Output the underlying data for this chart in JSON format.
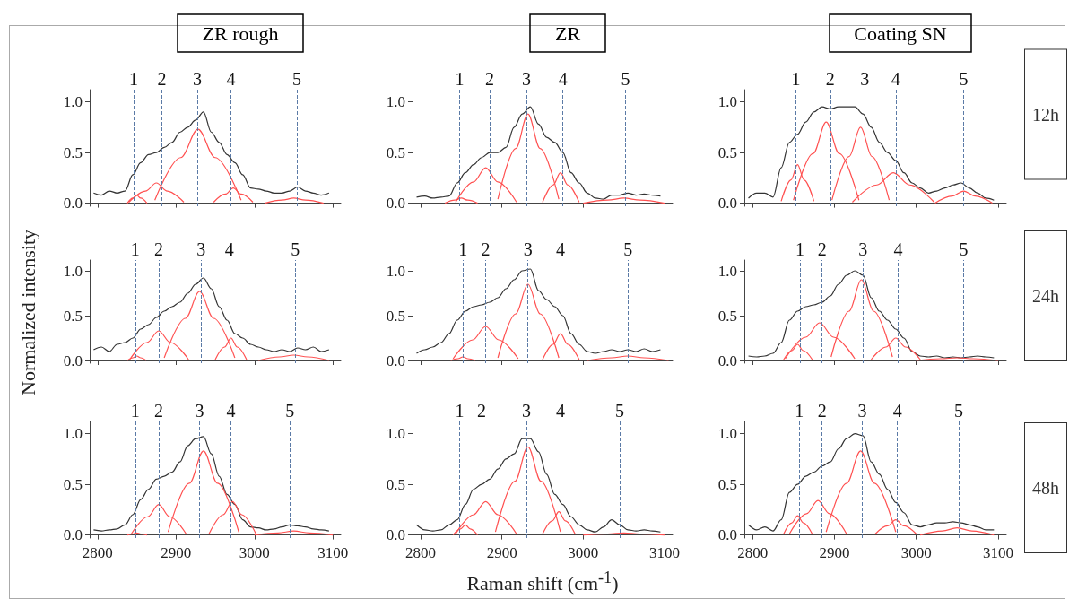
{
  "chart_data": [
    {
      "type": "line",
      "title": "ZR rough",
      "tick_labels": "y",
      "xlim": [
        2790,
        3110
      ],
      "xticks": [
        2800,
        2900,
        3000,
        3100
      ],
      "ylim": [
        -0.03,
        1.12
      ],
      "yticks": [
        {
          "value": 0,
          "label": "0.0"
        },
        {
          "value": 0.5,
          "label": "0.5"
        },
        {
          "value": 1,
          "label": "1.0"
        }
      ],
      "x": [
        2795,
        2805,
        2815,
        2825,
        2835,
        2845,
        2855,
        2865,
        2875,
        2885,
        2895,
        2905,
        2915,
        2925,
        2935,
        2945,
        2955,
        2965,
        2975,
        2985,
        2995,
        3005,
        3015,
        3025,
        3035,
        3045,
        3055,
        3065,
        3075,
        3085,
        3095
      ],
      "ref_lines": [
        {
          "axis": "x",
          "value": 2846
        },
        {
          "axis": "x",
          "value": 2882
        },
        {
          "axis": "x",
          "value": 2927
        },
        {
          "axis": "x",
          "value": 2970
        },
        {
          "axis": "x",
          "value": 3054
        }
      ],
      "annotations": [
        {
          "text": "1",
          "x": 2846,
          "y": 1.12
        },
        {
          "text": "2",
          "x": 2882,
          "y": 1.12
        },
        {
          "text": "3",
          "x": 2927,
          "y": 1.12
        },
        {
          "text": "4",
          "x": 2970,
          "y": 1.12
        },
        {
          "text": "5",
          "x": 3054,
          "y": 1.12
        }
      ],
      "series": [
        {
          "color": "#333333",
          "values": [
            0.1,
            0.08,
            0.12,
            0.1,
            0.12,
            0.28,
            0.4,
            0.48,
            0.5,
            0.55,
            0.6,
            0.7,
            0.75,
            0.82,
            0.9,
            0.7,
            0.6,
            0.48,
            0.4,
            0.28,
            0.15,
            0.14,
            0.12,
            0.1,
            0.1,
            0.12,
            0.16,
            0.12,
            0.1,
            0.08,
            0.1
          ]
        },
        {
          "color": "#ff5050",
          "x": [
            2838,
            2845,
            2850,
            2855,
            2863
          ],
          "values": [
            0,
            0.05,
            0.08,
            0.05,
            0
          ]
        },
        {
          "color": "#ff5050",
          "x": [
            2840,
            2861,
            2875,
            2889,
            2910
          ],
          "values": [
            0.01,
            0.12,
            0.2,
            0.12,
            0.01
          ]
        },
        {
          "color": "#ff5050",
          "x": [
            2873,
            2906,
            2928,
            2950,
            2983
          ],
          "values": [
            0.03,
            0.45,
            0.73,
            0.45,
            0.03
          ]
        },
        {
          "color": "#ff5050",
          "x": [
            2948,
            2963,
            2973,
            2983,
            2998
          ],
          "values": [
            0.01,
            0.09,
            0.15,
            0.09,
            0.01
          ]
        },
        {
          "color": "#ff5050",
          "x": [
            3013,
            3035,
            3050,
            3065,
            3088
          ],
          "values": [
            0,
            0.03,
            0.05,
            0.03,
            0
          ]
        }
      ]
    },
    {
      "type": "line",
      "title": "ZR",
      "tick_labels": "y",
      "xlim": [
        2790,
        3110
      ],
      "xticks": [
        2800,
        2900,
        3000,
        3100
      ],
      "ylim": [
        -0.03,
        1.12
      ],
      "yticks": [
        {
          "value": 0,
          "label": "0.0"
        },
        {
          "value": 0.5,
          "label": "0.5"
        },
        {
          "value": 1,
          "label": "1.0"
        }
      ],
      "x": [
        2795,
        2805,
        2815,
        2825,
        2835,
        2845,
        2855,
        2865,
        2875,
        2885,
        2895,
        2905,
        2915,
        2925,
        2935,
        2945,
        2955,
        2965,
        2975,
        2985,
        2995,
        3005,
        3015,
        3025,
        3035,
        3045,
        3055,
        3065,
        3075,
        3085,
        3095
      ],
      "ref_lines": [
        {
          "axis": "x",
          "value": 2848
        },
        {
          "axis": "x",
          "value": 2885
        },
        {
          "axis": "x",
          "value": 2930
        },
        {
          "axis": "x",
          "value": 2975
        },
        {
          "axis": "x",
          "value": 3052
        }
      ],
      "annotations": [
        {
          "text": "1",
          "x": 2848,
          "y": 1.12
        },
        {
          "text": "2",
          "x": 2885,
          "y": 1.12
        },
        {
          "text": "3",
          "x": 2930,
          "y": 1.12
        },
        {
          "text": "4",
          "x": 2975,
          "y": 1.12
        },
        {
          "text": "5",
          "x": 3052,
          "y": 1.12
        }
      ],
      "series": [
        {
          "color": "#333333",
          "values": [
            0.06,
            0.07,
            0.05,
            0.06,
            0.07,
            0.2,
            0.3,
            0.38,
            0.45,
            0.5,
            0.5,
            0.55,
            0.75,
            0.88,
            0.95,
            0.78,
            0.65,
            0.6,
            0.5,
            0.3,
            0.2,
            0.1,
            0.05,
            0.04,
            0.08,
            0.08,
            0.1,
            0.08,
            0.09,
            0.08,
            0.07
          ]
        },
        {
          "color": "#ff5050",
          "x": [
            2830,
            2842,
            2850,
            2858,
            2870
          ],
          "values": [
            0,
            0.03,
            0.05,
            0.03,
            0
          ]
        },
        {
          "color": "#ff5050",
          "x": [
            2843,
            2865,
            2880,
            2895,
            2918
          ],
          "values": [
            0.01,
            0.21,
            0.35,
            0.21,
            0.01
          ]
        },
        {
          "color": "#ff5050",
          "x": [
            2895,
            2917,
            2932,
            2947,
            2970
          ],
          "values": [
            0.04,
            0.54,
            0.88,
            0.54,
            0.04
          ]
        },
        {
          "color": "#ff5050",
          "x": [
            2950,
            2963,
            2972,
            2981,
            2995
          ],
          "values": [
            0.01,
            0.18,
            0.3,
            0.18,
            0.01
          ]
        },
        {
          "color": "#ff5050",
          "x": [
            3000,
            3030,
            3050,
            3070,
            3100
          ],
          "values": [
            0,
            0.03,
            0.05,
            0.03,
            0
          ]
        }
      ]
    },
    {
      "type": "line",
      "title": "Coating SN",
      "tick_labels": "y",
      "xlim": [
        2790,
        3110
      ],
      "xticks": [
        2800,
        2900,
        3000,
        3100
      ],
      "ylim": [
        -0.03,
        1.12
      ],
      "yticks": [
        {
          "value": 0,
          "label": "0.0"
        },
        {
          "value": 0.5,
          "label": "0.5"
        },
        {
          "value": 1,
          "label": "1.0"
        }
      ],
      "x": [
        2795,
        2805,
        2815,
        2825,
        2835,
        2845,
        2855,
        2865,
        2875,
        2885,
        2895,
        2905,
        2915,
        2925,
        2935,
        2945,
        2955,
        2965,
        2975,
        2985,
        2995,
        3005,
        3015,
        3025,
        3035,
        3045,
        3055,
        3065,
        3075,
        3085,
        3095
      ],
      "ref_lines": [
        {
          "axis": "x",
          "value": 2853
        },
        {
          "axis": "x",
          "value": 2895
        },
        {
          "axis": "x",
          "value": 2937
        },
        {
          "axis": "x",
          "value": 2975
        },
        {
          "axis": "x",
          "value": 3058
        }
      ],
      "annotations": [
        "12h",
        {
          "text": "1",
          "x": 2853,
          "y": 1.12
        },
        {
          "text": "2",
          "x": 2895,
          "y": 1.12
        },
        {
          "text": "3",
          "x": 2937,
          "y": 1.12
        },
        {
          "text": "4",
          "x": 2975,
          "y": 1.12
        },
        {
          "text": "5",
          "x": 3058,
          "y": 1.12
        }
      ],
      "series": [
        {
          "color": "#333333",
          "values": [
            0.05,
            0.1,
            0.1,
            0.06,
            0.35,
            0.6,
            0.68,
            0.8,
            0.9,
            0.95,
            0.93,
            0.95,
            0.95,
            0.95,
            0.88,
            0.75,
            0.6,
            0.5,
            0.42,
            0.3,
            0.2,
            0.15,
            0.1,
            0.12,
            0.15,
            0.18,
            0.2,
            0.15,
            0.1,
            0.05,
            0.03
          ]
        },
        {
          "color": "#ff5050",
          "x": [
            2835,
            2847,
            2855,
            2863,
            2875
          ],
          "values": [
            0.02,
            0.23,
            0.38,
            0.23,
            0.02
          ]
        },
        {
          "color": "#ff5050",
          "x": [
            2850,
            2874,
            2890,
            2906,
            2930
          ],
          "values": [
            0.03,
            0.49,
            0.8,
            0.49,
            0.03
          ]
        },
        {
          "color": "#ff5050",
          "x": [
            2897,
            2918,
            2932,
            2946,
            2967
          ],
          "values": [
            0.03,
            0.46,
            0.75,
            0.46,
            0.03
          ]
        },
        {
          "color": "#ff5050",
          "x": [
            2922,
            2952,
            2972,
            2992,
            3022
          ],
          "values": [
            0.01,
            0.18,
            0.3,
            0.18,
            0.01
          ]
        },
        {
          "color": "#ff5050",
          "x": [
            3023,
            3044,
            3058,
            3072,
            3093
          ],
          "values": [
            0,
            0.07,
            0.12,
            0.07,
            0
          ]
        }
      ]
    },
    {
      "type": "line",
      "ylabel": "Normalized intensity",
      "tick_labels": "y",
      "xlim": [
        2790,
        3110
      ],
      "xticks": [
        2800,
        2900,
        3000,
        3100
      ],
      "ylim": [
        -0.03,
        1.12
      ],
      "yticks": [
        {
          "value": 0,
          "label": "0.0"
        },
        {
          "value": 0.5,
          "label": "0.5"
        },
        {
          "value": 1,
          "label": "1.0"
        }
      ],
      "x": [
        2795,
        2805,
        2815,
        2825,
        2835,
        2845,
        2855,
        2865,
        2875,
        2885,
        2895,
        2905,
        2915,
        2925,
        2935,
        2945,
        2955,
        2965,
        2975,
        2985,
        2995,
        3005,
        3015,
        3025,
        3035,
        3045,
        3055,
        3065,
        3075,
        3085,
        3095
      ],
      "ref_lines": [
        {
          "axis": "x",
          "value": 2848
        },
        {
          "axis": "x",
          "value": 2878
        },
        {
          "axis": "x",
          "value": 2932
        },
        {
          "axis": "x",
          "value": 2968
        },
        {
          "axis": "x",
          "value": 3052
        }
      ],
      "annotations": [
        {
          "text": "1",
          "x": 2848,
          "y": 1.12
        },
        {
          "text": "2",
          "x": 2878,
          "y": 1.12
        },
        {
          "text": "3",
          "x": 2932,
          "y": 1.12
        },
        {
          "text": "4",
          "x": 2968,
          "y": 1.12
        },
        {
          "text": "5",
          "x": 3052,
          "y": 1.12
        }
      ],
      "series": [
        {
          "color": "#333333",
          "values": [
            0.12,
            0.15,
            0.1,
            0.18,
            0.2,
            0.25,
            0.35,
            0.4,
            0.48,
            0.55,
            0.6,
            0.65,
            0.75,
            0.85,
            0.92,
            0.8,
            0.6,
            0.45,
            0.3,
            0.25,
            0.18,
            0.15,
            0.12,
            0.1,
            0.12,
            0.1,
            0.14,
            0.12,
            0.15,
            0.1,
            0.12
          ]
        },
        {
          "color": "#ff5252",
          "x": [
            2838,
            2845,
            2850,
            2855,
            2862
          ],
          "values": [
            0,
            0.03,
            0.05,
            0.03,
            0
          ]
        },
        {
          "color": "#ff5050",
          "x": [
            2841,
            2863,
            2878,
            2893,
            2916
          ],
          "values": [
            0.01,
            0.2,
            0.33,
            0.2,
            0.01
          ]
        },
        {
          "color": "#ff5454",
          "x": [
            2885,
            2912,
            2930,
            2948,
            2975
          ],
          "values": [
            0.03,
            0.47,
            0.77,
            0.47,
            0.03
          ]
        },
        {
          "color": "#ff5050",
          "x": [
            2950,
            2962,
            2970,
            2978,
            2990
          ],
          "values": [
            0.01,
            0.15,
            0.25,
            0.15,
            0.01
          ]
        },
        {
          "color": "#ff5656",
          "x": [
            3005,
            3032,
            3050,
            3068,
            3095
          ],
          "values": [
            0,
            0.04,
            0.06,
            0.04,
            0
          ]
        }
      ]
    },
    {
      "type": "line",
      "tick_labels": "y",
      "xlim": [
        2790,
        3110
      ],
      "xticks": [
        2800,
        2900,
        3000,
        3100
      ],
      "ylim": [
        -0.03,
        1.12
      ],
      "yticks": [
        {
          "value": 0,
          "label": "0.0"
        },
        {
          "value": 0.5,
          "label": "0.5"
        },
        {
          "value": 1,
          "label": "1.0"
        }
      ],
      "x": [
        2795,
        2805,
        2815,
        2825,
        2835,
        2845,
        2855,
        2865,
        2875,
        2885,
        2895,
        2905,
        2915,
        2925,
        2935,
        2945,
        2955,
        2965,
        2975,
        2985,
        2995,
        3005,
        3015,
        3025,
        3035,
        3045,
        3055,
        3065,
        3075,
        3085,
        3095
      ],
      "ref_lines": [
        {
          "axis": "x",
          "value": 2852
        },
        {
          "axis": "x",
          "value": 2880
        },
        {
          "axis": "x",
          "value": 2932
        },
        {
          "axis": "x",
          "value": 2972
        },
        {
          "axis": "x",
          "value": 3055
        }
      ],
      "annotations": [
        {
          "text": "1",
          "x": 2852,
          "y": 1.12
        },
        {
          "text": "2",
          "x": 2880,
          "y": 1.12
        },
        {
          "text": "3",
          "x": 2932,
          "y": 1.12
        },
        {
          "text": "4",
          "x": 2972,
          "y": 1.12
        },
        {
          "text": "5",
          "x": 3055,
          "y": 1.12
        }
      ],
      "series": [
        {
          "color": "#333333",
          "values": [
            0.08,
            0.12,
            0.15,
            0.2,
            0.3,
            0.45,
            0.55,
            0.6,
            0.62,
            0.65,
            0.7,
            0.8,
            0.9,
            1.0,
            1.02,
            0.78,
            0.68,
            0.6,
            0.5,
            0.3,
            0.18,
            0.1,
            0.08,
            0.1,
            0.12,
            0.1,
            0.12,
            0.1,
            0.13,
            0.1,
            0.12
          ]
        },
        {
          "color": "#ff5050",
          "x": [
            2837,
            2846,
            2852,
            2858,
            2867
          ],
          "values": [
            0,
            0.02,
            0.04,
            0.02,
            0
          ]
        },
        {
          "color": "#ff5050",
          "x": [
            2840,
            2864,
            2880,
            2896,
            2920
          ],
          "values": [
            0.02,
            0.23,
            0.38,
            0.23,
            0.02
          ]
        },
        {
          "color": "#ff5050",
          "x": [
            2895,
            2917,
            2932,
            2947,
            2970
          ],
          "values": [
            0.03,
            0.52,
            0.85,
            0.52,
            0.03
          ]
        },
        {
          "color": "#ff5050",
          "x": [
            2950,
            2963,
            2972,
            2981,
            2995
          ],
          "values": [
            0.01,
            0.18,
            0.3,
            0.18,
            0.01
          ]
        },
        {
          "color": "#ff5050",
          "x": [
            3005,
            3035,
            3055,
            3075,
            3105
          ],
          "values": [
            0,
            0.03,
            0.05,
            0.03,
            0
          ]
        }
      ]
    },
    {
      "type": "line",
      "tick_labels": "y",
      "xlim": [
        2790,
        3110
      ],
      "xticks": [
        2800,
        2900,
        3000,
        3100
      ],
      "ylim": [
        -0.03,
        1.12
      ],
      "yticks": [
        {
          "value": 0,
          "label": "0.0"
        },
        {
          "value": 0.5,
          "label": "0.5"
        },
        {
          "value": 1,
          "label": "1.0"
        }
      ],
      "x": [
        2795,
        2805,
        2815,
        2825,
        2835,
        2845,
        2855,
        2865,
        2875,
        2885,
        2895,
        2905,
        2915,
        2925,
        2935,
        2945,
        2955,
        2965,
        2975,
        2985,
        2995,
        3005,
        3015,
        3025,
        3035,
        3045,
        3055,
        3065,
        3075,
        3085,
        3095
      ],
      "ref_lines": [
        {
          "axis": "x",
          "value": 2858
        },
        {
          "axis": "x",
          "value": 2885
        },
        {
          "axis": "x",
          "value": 2935
        },
        {
          "axis": "x",
          "value": 2978
        },
        {
          "axis": "x",
          "value": 3058
        }
      ],
      "annotations": [
        "24h",
        {
          "text": "1",
          "x": 2858,
          "y": 1.12
        },
        {
          "text": "2",
          "x": 2885,
          "y": 1.12
        },
        {
          "text": "3",
          "x": 2935,
          "y": 1.12
        },
        {
          "text": "4",
          "x": 2978,
          "y": 1.12
        },
        {
          "text": "5",
          "x": 3058,
          "y": 1.12
        }
      ],
      "series": [
        {
          "color": "#333333",
          "values": [
            0.05,
            0.04,
            0.05,
            0.08,
            0.2,
            0.45,
            0.55,
            0.6,
            0.62,
            0.65,
            0.72,
            0.85,
            0.95,
            1.0,
            0.95,
            0.7,
            0.55,
            0.45,
            0.35,
            0.25,
            0.1,
            0.05,
            0.04,
            0.05,
            0.03,
            0.04,
            0.03,
            0.04,
            0.05,
            0.04,
            0.03
          ]
        },
        {
          "color": "#ff5050",
          "x": [
            2838,
            2848,
            2855,
            2862,
            2873
          ],
          "values": [
            0.01,
            0.11,
            0.18,
            0.11,
            0.01
          ]
        },
        {
          "color": "#ff5050",
          "x": [
            2840,
            2865,
            2882,
            2899,
            2925
          ],
          "values": [
            0.02,
            0.26,
            0.42,
            0.26,
            0.02
          ]
        },
        {
          "color": "#ff5050",
          "x": [
            2896,
            2918,
            2933,
            2948,
            2971
          ],
          "values": [
            0.04,
            0.55,
            0.9,
            0.55,
            0.04
          ]
        },
        {
          "color": "#ff5050",
          "x": [
            2945,
            2963,
            2975,
            2987,
            3005
          ],
          "values": [
            0.01,
            0.15,
            0.25,
            0.15,
            0.01
          ]
        },
        {
          "color": "#ff5050",
          "x": [
            3000,
            3030,
            3050,
            3070,
            3100
          ],
          "values": [
            0,
            0.02,
            0.03,
            0.02,
            0
          ]
        }
      ]
    },
    {
      "type": "line",
      "xlim": [
        2790,
        3110
      ],
      "xticks": [
        2800,
        2900,
        3000,
        3100
      ],
      "ylim": [
        -0.03,
        1.12
      ],
      "yticks": [
        {
          "value": 0,
          "label": "0.0"
        },
        {
          "value": 0.5,
          "label": "0.5"
        },
        {
          "value": 1,
          "label": "1.0"
        }
      ],
      "x": [
        2795,
        2805,
        2815,
        2825,
        2835,
        2845,
        2855,
        2865,
        2875,
        2885,
        2895,
        2905,
        2915,
        2925,
        2935,
        2945,
        2955,
        2965,
        2975,
        2985,
        2995,
        3005,
        3015,
        3025,
        3035,
        3045,
        3055,
        3065,
        3075,
        3085,
        3095
      ],
      "ref_lines": [
        {
          "axis": "x",
          "value": 2848
        },
        {
          "axis": "x",
          "value": 2878
        },
        {
          "axis": "x",
          "value": 2930
        },
        {
          "axis": "x",
          "value": 2970
        },
        {
          "axis": "x",
          "value": 3045
        }
      ],
      "annotations": [
        {
          "text": "1",
          "x": 2848,
          "y": 1.12
        },
        {
          "text": "2",
          "x": 2878,
          "y": 1.12
        },
        {
          "text": "3",
          "x": 2930,
          "y": 1.12
        },
        {
          "text": "4",
          "x": 2970,
          "y": 1.12
        },
        {
          "text": "5",
          "x": 3045,
          "y": 1.12
        }
      ],
      "series": [
        {
          "color": "#333333",
          "values": [
            0.05,
            0.04,
            0.05,
            0.06,
            0.1,
            0.2,
            0.35,
            0.45,
            0.55,
            0.58,
            0.62,
            0.72,
            0.88,
            0.95,
            0.97,
            0.8,
            0.58,
            0.4,
            0.3,
            0.15,
            0.08,
            0.07,
            0.05,
            0.06,
            0.08,
            0.1,
            0.09,
            0.08,
            0.06,
            0.05,
            0.04
          ]
        },
        {
          "color": "#ff5050",
          "x": [
            2838,
            2845,
            2850,
            2855,
            2863
          ],
          "values": [
            0,
            0.01,
            0.02,
            0.01,
            0
          ]
        },
        {
          "color": "#ff5050",
          "x": [
            2843,
            2864,
            2878,
            2892,
            2913
          ],
          "values": [
            0.01,
            0.18,
            0.3,
            0.18,
            0.01
          ]
        },
        {
          "color": "#ff5050",
          "x": [
            2890,
            2917,
            2935,
            2953,
            2980
          ],
          "values": [
            0.03,
            0.51,
            0.83,
            0.51,
            0.03
          ]
        },
        {
          "color": "#ff5050",
          "x": [
            2942,
            2960,
            2972,
            2984,
            3002
          ],
          "values": [
            0.01,
            0.2,
            0.33,
            0.2,
            0.01
          ]
        },
        {
          "color": "#ff5050",
          "x": [
            3000,
            3030,
            3050,
            3070,
            3100
          ],
          "values": [
            0,
            0.02,
            0.04,
            0.02,
            0
          ]
        }
      ]
    },
    {
      "type": "line",
      "xlabel": "Raman shift (cm$^{-1}$)",
      "xlim": [
        2790,
        3110
      ],
      "xticks": [
        2800,
        2900,
        3000,
        3100
      ],
      "ylim": [
        -0.03,
        1.12
      ],
      "yticks": [
        {
          "value": 0,
          "label": "0.0"
        },
        {
          "value": 0.5,
          "label": "0.5"
        },
        {
          "value": 1,
          "label": "1.0"
        }
      ],
      "x": [
        2795,
        2805,
        2815,
        2825,
        2835,
        2845,
        2855,
        2865,
        2875,
        2885,
        2895,
        2905,
        2915,
        2925,
        2935,
        2945,
        2955,
        2965,
        2975,
        2985,
        2995,
        3005,
        3015,
        3025,
        3035,
        3045,
        3055,
        3065,
        3075,
        3085,
        3095
      ],
      "ref_lines": [
        {
          "axis": "x",
          "value": 2848
        },
        {
          "axis": "x",
          "value": 2875
        },
        {
          "axis": "x",
          "value": 2930
        },
        {
          "axis": "x",
          "value": 2972
        },
        {
          "axis": "x",
          "value": 3045
        }
      ],
      "annotations": [
        {
          "text": "1",
          "x": 2848,
          "y": 1.12
        },
        {
          "text": "2",
          "x": 2875,
          "y": 1.12
        },
        {
          "text": "3",
          "x": 2930,
          "y": 1.12
        },
        {
          "text": "4",
          "x": 2972,
          "y": 1.12
        },
        {
          "text": "5",
          "x": 3045,
          "y": 1.12
        }
      ],
      "series": [
        {
          "color": "#333333",
          "values": [
            0.1,
            0.05,
            0.04,
            0.05,
            0.1,
            0.15,
            0.3,
            0.45,
            0.5,
            0.55,
            0.65,
            0.75,
            0.8,
            0.95,
            0.95,
            0.82,
            0.6,
            0.4,
            0.3,
            0.18,
            0.1,
            0.05,
            0.03,
            0.08,
            0.15,
            0.1,
            0.05,
            0.04,
            0.05,
            0.04,
            0.03
          ]
        },
        {
          "color": "#ff5050",
          "x": [
            2840,
            2849,
            2855,
            2861,
            2870
          ],
          "values": [
            0,
            0.06,
            0.1,
            0.06,
            0
          ]
        },
        {
          "color": "#ff5050",
          "x": [
            2843,
            2865,
            2880,
            2895,
            2918
          ],
          "values": [
            0.01,
            0.2,
            0.33,
            0.2,
            0.01
          ]
        },
        {
          "color": "#ff5050",
          "x": [
            2892,
            2916,
            2932,
            2948,
            2972
          ],
          "values": [
            0.03,
            0.53,
            0.87,
            0.53,
            0.03
          ]
        },
        {
          "color": "#ff5050",
          "x": [
            2950,
            2962,
            2970,
            2978,
            2990
          ],
          "values": [
            0.01,
            0.14,
            0.23,
            0.14,
            0.01
          ]
        },
        {
          "color": "#ff5050",
          "x": [
            3000,
            3030,
            3050,
            3070,
            3100
          ],
          "values": [
            0,
            0.01,
            0.02,
            0.01,
            0
          ]
        }
      ]
    },
    {
      "type": "line",
      "xlim": [
        2790,
        3110
      ],
      "xticks": [
        2800,
        2900,
        3000,
        3100
      ],
      "ylim": [
        -0.03,
        1.12
      ],
      "yticks": [
        {
          "value": 0,
          "label": "0.0"
        },
        {
          "value": 0.5,
          "label": "0.5"
        },
        {
          "value": 1,
          "label": "1.0"
        }
      ],
      "x": [
        2795,
        2805,
        2815,
        2825,
        2835,
        2845,
        2855,
        2865,
        2875,
        2885,
        2895,
        2905,
        2915,
        2925,
        2935,
        2945,
        2955,
        2965,
        2975,
        2985,
        2995,
        3005,
        3015,
        3025,
        3035,
        3045,
        3055,
        3065,
        3075,
        3085,
        3095
      ],
      "ref_lines": [
        {
          "axis": "x",
          "value": 2857
        },
        {
          "axis": "x",
          "value": 2885
        },
        {
          "axis": "x",
          "value": 2934
        },
        {
          "axis": "x",
          "value": 2977
        },
        {
          "axis": "x",
          "value": 3052
        }
      ],
      "annotations": [
        "48h",
        {
          "text": "1",
          "x": 2857,
          "y": 1.12
        },
        {
          "text": "2",
          "x": 2885,
          "y": 1.12
        },
        {
          "text": "3",
          "x": 2934,
          "y": 1.12
        },
        {
          "text": "4",
          "x": 2977,
          "y": 1.12
        },
        {
          "text": "5",
          "x": 3052,
          "y": 1.12
        }
      ],
      "series": [
        {
          "color": "#333333",
          "values": [
            0.1,
            0.05,
            0.08,
            0.04,
            0.15,
            0.42,
            0.5,
            0.58,
            0.62,
            0.68,
            0.72,
            0.85,
            0.95,
            1.0,
            0.98,
            0.72,
            0.6,
            0.45,
            0.32,
            0.22,
            0.1,
            0.08,
            0.1,
            0.12,
            0.12,
            0.13,
            0.12,
            0.1,
            0.08,
            0.05,
            0.05
          ]
        },
        {
          "color": "#ff5050",
          "x": [
            2838,
            2848,
            2855,
            2862,
            2873
          ],
          "values": [
            0.01,
            0.12,
            0.19,
            0.12,
            0.01
          ]
        },
        {
          "color": "#ff5050",
          "x": [
            2845,
            2866,
            2880,
            2894,
            2915
          ],
          "values": [
            0.01,
            0.21,
            0.34,
            0.21,
            0.01
          ]
        },
        {
          "color": "#ff5050",
          "x": [
            2890,
            2915,
            2932,
            2949,
            2975
          ],
          "values": [
            0.03,
            0.51,
            0.83,
            0.51,
            0.03
          ]
        },
        {
          "color": "#ff5050",
          "x": [
            2950,
            2965,
            2975,
            2985,
            3000
          ],
          "values": [
            0.01,
            0.09,
            0.15,
            0.09,
            0.01
          ]
        },
        {
          "color": "#ff5050",
          "x": [
            3005,
            3032,
            3050,
            3068,
            3095
          ],
          "values": [
            0,
            0.04,
            0.07,
            0.04,
            0
          ]
        }
      ]
    }
  ]
}
